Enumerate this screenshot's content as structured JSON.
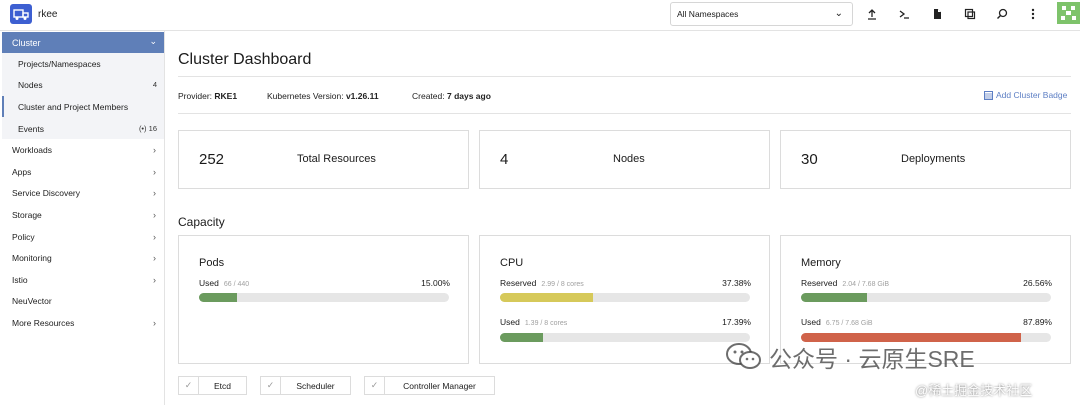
{
  "header": {
    "cluster_name": "rkee",
    "namespace_select": "All Namespaces",
    "tools": [
      "upload-icon",
      "terminal-icon",
      "file-icon",
      "copy-icon",
      "search-icon",
      "more-icon"
    ]
  },
  "sidebar": {
    "group_label": "Cluster",
    "sub_items": [
      {
        "label": "Projects/Namespaces",
        "count": ""
      },
      {
        "label": "Nodes",
        "count": "4"
      },
      {
        "label": "Cluster and Project Members",
        "count": ""
      },
      {
        "label": "Events",
        "count": "16"
      }
    ],
    "items": [
      {
        "label": "Workloads"
      },
      {
        "label": "Apps"
      },
      {
        "label": "Service Discovery"
      },
      {
        "label": "Storage"
      },
      {
        "label": "Policy"
      },
      {
        "label": "Monitoring"
      },
      {
        "label": "Istio"
      },
      {
        "label": "NeuVector"
      },
      {
        "label": "More Resources"
      }
    ]
  },
  "main": {
    "title": "Cluster Dashboard",
    "meta": {
      "provider_label": "Provider:",
      "provider_value": "RKE1",
      "k8s_label": "Kubernetes Version:",
      "k8s_value": "v1.26.11",
      "created_label": "Created:",
      "created_value": "7 days ago"
    },
    "add_badge": "Add Cluster Badge",
    "stats": [
      {
        "value": "252",
        "label": "Total Resources"
      },
      {
        "value": "4",
        "label": "Nodes"
      },
      {
        "value": "30",
        "label": "Deployments"
      }
    ],
    "capacity_title": "Capacity",
    "capacity": {
      "pods": {
        "title": "Pods",
        "rows": [
          {
            "label": "Used",
            "detail": "66 / 440",
            "pct": "15.00%",
            "fraction": 0.15,
            "color": "#6b9b5e"
          }
        ]
      },
      "cpu": {
        "title": "CPU",
        "rows": [
          {
            "label": "Reserved",
            "detail": "2.99 / 8 cores",
            "pct": "37.38%",
            "fraction": 0.3738,
            "color": "#d6c95a"
          },
          {
            "label": "Used",
            "detail": "1.39 / 8 cores",
            "pct": "17.39%",
            "fraction": 0.1739,
            "color": "#6b9b5e"
          }
        ]
      },
      "memory": {
        "title": "Memory",
        "rows": [
          {
            "label": "Reserved",
            "detail": "2.04 / 7.68 GiB",
            "pct": "26.56%",
            "fraction": 0.2656,
            "color": "#6b9b5e"
          },
          {
            "label": "Used",
            "detail": "6.75 / 7.68 GiB",
            "pct": "87.89%",
            "fraction": 0.8789,
            "color": "#d0634a"
          }
        ]
      }
    },
    "components": [
      "Etcd",
      "Scheduler",
      "Controller Manager"
    ]
  },
  "watermark": {
    "line1": "公众号 · 云原生SRE",
    "line2": "@稀土掘金技术社区"
  }
}
